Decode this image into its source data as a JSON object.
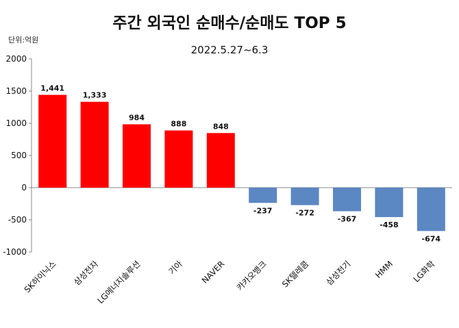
{
  "chart_data": {
    "type": "bar",
    "title": "주간 외국인 순매수/순매도  TOP 5",
    "subtitle": "2022.5.27~6.3",
    "unit": "단위:억원",
    "categories": [
      "SK하이닉스",
      "삼성전자",
      "LG에너지솔루션",
      "기아",
      "NAVER",
      "카카오뱅크",
      "SK텔레콤",
      "삼성전기",
      "HMM",
      "LG화학"
    ],
    "values": [
      1441,
      1333,
      984,
      888,
      848,
      -237,
      -272,
      -367,
      -458,
      -674
    ],
    "value_labels": [
      "1,441",
      "1,333",
      "984",
      "888",
      "848",
      "-237",
      "-272",
      "-367",
      "-458",
      "-674"
    ],
    "ylim": [
      -1000,
      2000
    ],
    "yticks": [
      2000,
      1500,
      1000,
      500,
      0,
      -500,
      -1000
    ],
    "colors": {
      "positive": "#ff0000",
      "negative": "#5b87c2"
    },
    "grid": false,
    "legend": "none"
  }
}
